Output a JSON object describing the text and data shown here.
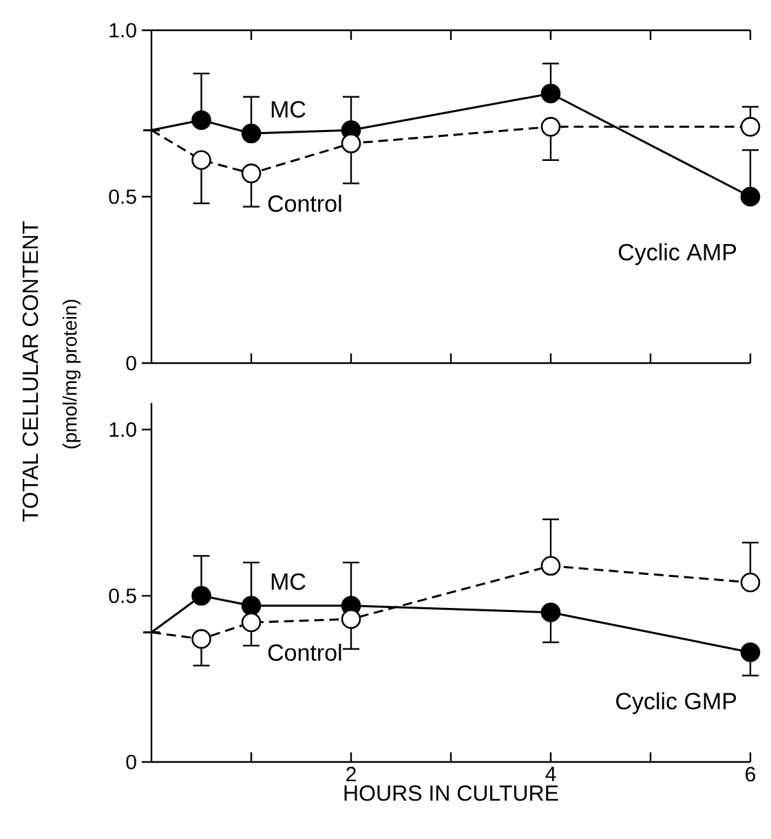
{
  "chart_data": [
    {
      "type": "line",
      "xlim": [
        0,
        6
      ],
      "ylim": [
        0,
        1.0
      ],
      "xticks": [
        {
          "value": 1,
          "label": null
        },
        2,
        {
          "value": 3,
          "label": null
        },
        4,
        {
          "value": 5,
          "label": null
        },
        6
      ],
      "yticks": [
        0,
        0.5,
        {
          "value": 1.0,
          "label": "1.0"
        }
      ],
      "tick_labels": "y",
      "marker": "circle",
      "ylabel": "TOTAL CELLULAR CONTENT",
      "annotations": [
        "Cyclic AMP"
      ],
      "x": [
        0,
        0.5,
        1,
        2,
        4,
        6
      ],
      "series": [
        {
          "name": "MC",
          "color": "#000000",
          "line_style": "solid",
          "values": [
            0.7,
            0.73,
            0.69,
            0.7,
            0.81,
            0.5
          ],
          "errors": [
            null,
            [
              0.73,
              0.87
            ],
            [
              0.69,
              0.8
            ],
            [
              0.7,
              0.8
            ],
            [
              0.81,
              0.9
            ],
            [
              0.5,
              0.64
            ]
          ]
        },
        {
          "name": "Control",
          "color": "#ffffff",
          "line_style": "dashed",
          "values": [
            0.7,
            0.61,
            0.57,
            0.66,
            0.71,
            0.71
          ],
          "errors": [
            null,
            [
              0.48,
              0.61
            ],
            [
              0.47,
              0.57
            ],
            [
              0.54,
              0.66
            ],
            [
              0.61,
              0.71
            ],
            [
              0.71,
              0.77
            ]
          ]
        }
      ]
    },
    {
      "type": "line",
      "xlim": [
        0,
        6
      ],
      "ylim": [
        0,
        1.08
      ],
      "xticks": [
        {
          "value": 1,
          "label": null
        },
        2,
        {
          "value": 3,
          "label": null
        },
        4,
        {
          "value": 5,
          "label": null
        },
        6
      ],
      "yticks": [
        0,
        0.5,
        {
          "value": 1.0,
          "label": "1.0"
        }
      ],
      "marker": "circle",
      "xlabel": "HOURS IN CULTURE",
      "ylabel": "(pmol/mg protein)",
      "annotations": [
        "Cyclic GMP"
      ],
      "x": [
        0,
        0.5,
        1,
        2,
        4,
        6
      ],
      "series": [
        {
          "name": "MC",
          "color": "#000000",
          "line_style": "solid",
          "values": [
            0.39,
            0.5,
            0.47,
            0.47,
            0.45,
            0.33
          ],
          "errors": [
            null,
            [
              0.5,
              0.62
            ],
            [
              0.47,
              0.6
            ],
            [
              0.47,
              0.6
            ],
            [
              0.36,
              0.45
            ],
            [
              0.26,
              0.33
            ]
          ]
        },
        {
          "name": "Control",
          "color": "#ffffff",
          "line_style": "dashed",
          "values": [
            0.39,
            0.37,
            0.42,
            0.43,
            0.59,
            0.54
          ],
          "errors": [
            null,
            [
              0.29,
              0.37
            ],
            [
              0.35,
              0.42
            ],
            [
              0.34,
              0.43
            ],
            [
              0.59,
              0.73
            ],
            [
              0.54,
              0.66
            ]
          ]
        }
      ]
    }
  ]
}
